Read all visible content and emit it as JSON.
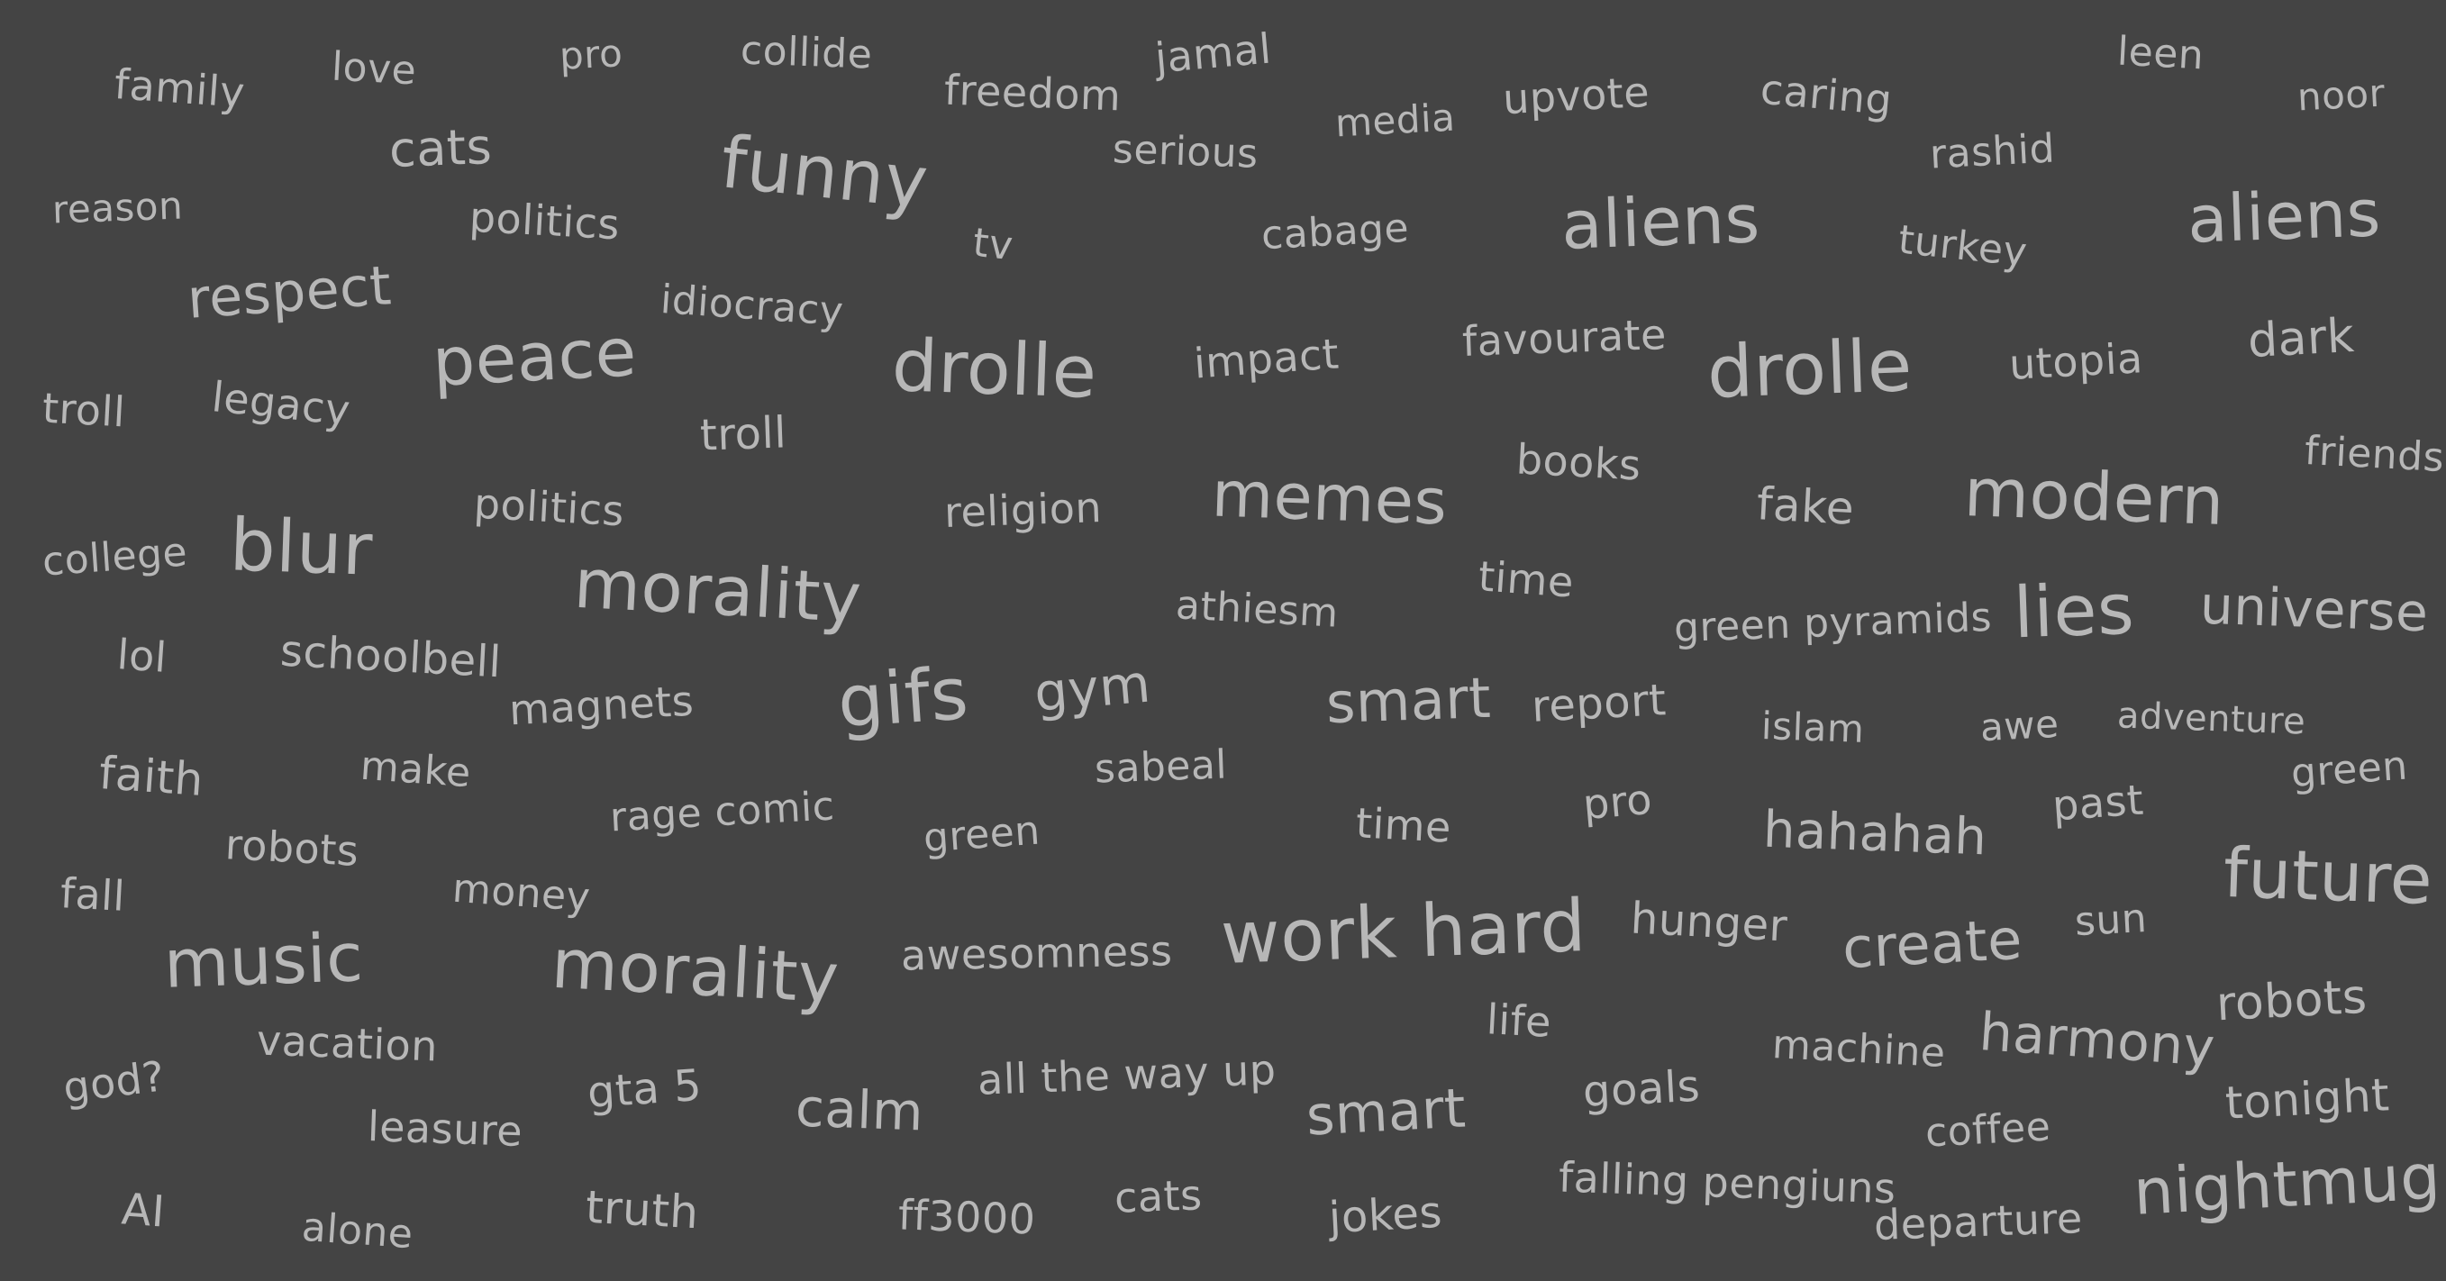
{
  "words": [
    "family",
    "love",
    "pro",
    "collide",
    "freedom",
    "jamal",
    "media",
    "upvote",
    "caring",
    "leen",
    "noor",
    "cats",
    "funny",
    "serious",
    "rashid",
    "reason",
    "politics",
    "tv",
    "cabage",
    "aliens",
    "turkey",
    "aliens",
    "respect",
    "idiocracy",
    "favourate",
    "dark",
    "peace",
    "drolle",
    "impact",
    "drolle",
    "utopia",
    "troll",
    "legacy",
    "troll",
    "friends",
    "books",
    "politics",
    "religion",
    "memes",
    "fake",
    "modern",
    "college",
    "blur",
    "morality",
    "time",
    "athiesm",
    "green pyramids",
    "lies",
    "universe",
    "lol",
    "schoolbell",
    "magnets",
    "gifs",
    "gym",
    "smart",
    "report",
    "islam",
    "awe",
    "adventure",
    "faith",
    "make",
    "sabeal",
    "rage comic",
    "green",
    "time",
    "pro",
    "hahahah",
    "past",
    "green",
    "robots",
    "fall",
    "money",
    "future",
    "music",
    "morality",
    "awesomness",
    "work hard",
    "hunger",
    "create",
    "sun",
    "robots",
    "vacation",
    "life",
    "machine",
    "harmony",
    "god?",
    "gta 5",
    "all the way up",
    "calm",
    "smart",
    "goals",
    "leasure",
    "coffee",
    "tonight",
    "AI",
    "alone",
    "truth",
    "ff3000",
    "cats",
    "jokes",
    "falling pengiuns",
    "departure",
    "nightmug"
  ],
  "colors": {
    "background": "#444444",
    "text": "#b7b7b7"
  }
}
